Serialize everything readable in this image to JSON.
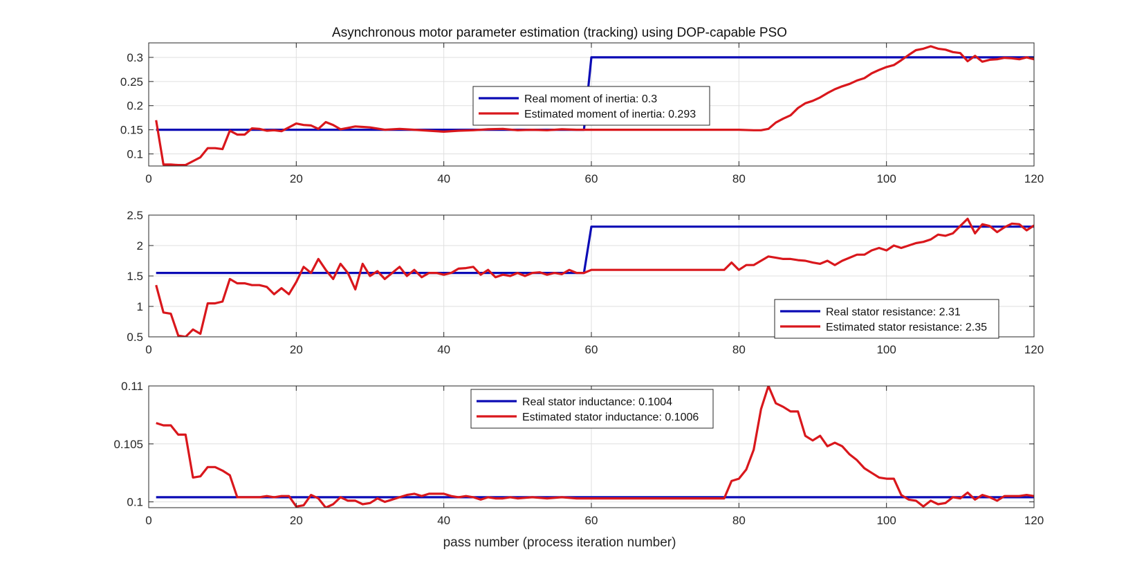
{
  "colors": {
    "real": "#0b0bb5",
    "estimated": "#d9171c",
    "grid": "#dfdfdf",
    "axis": "#262626"
  },
  "chart_data": [
    {
      "type": "line",
      "title": "Asynchronous motor parameter estimation (tracking) using DOP-capable PSO",
      "xlabel": "",
      "ylabel": "",
      "xlim": [
        0,
        120
      ],
      "ylim": [
        0.075,
        0.33
      ],
      "xticks": [
        0,
        20,
        40,
        60,
        80,
        100,
        120
      ],
      "yticks": [
        0.1,
        0.15,
        0.2,
        0.25,
        0.3
      ],
      "xtick_labels": [
        "0",
        "20",
        "40",
        "60",
        "80",
        "100",
        "120"
      ],
      "ytick_labels": [
        "0.1",
        "0.15",
        "0.2",
        "0.25",
        "0.3"
      ],
      "grid": true,
      "legend_position": "upper-center",
      "series": [
        {
          "name": "Real moment of inertia: 0.3",
          "role": "real",
          "x": [
            1,
            59,
            60,
            120
          ],
          "y": [
            0.15,
            0.15,
            0.3,
            0.3
          ]
        },
        {
          "name": "Estimated moment of inertia: 0.293",
          "role": "estimated",
          "x": [
            1,
            2,
            3,
            4,
            5,
            6,
            7,
            8,
            9,
            10,
            11,
            12,
            13,
            14,
            15,
            16,
            17,
            18,
            19,
            20,
            21,
            22,
            23,
            24,
            25,
            26,
            27,
            28,
            29,
            30,
            32,
            34,
            36,
            38,
            40,
            42,
            44,
            46,
            48,
            50,
            52,
            54,
            56,
            58,
            60,
            62,
            64,
            66,
            68,
            70,
            72,
            74,
            76,
            78,
            80,
            82,
            83,
            84,
            85,
            86,
            87,
            88,
            89,
            90,
            91,
            92,
            93,
            94,
            95,
            96,
            97,
            98,
            99,
            100,
            101,
            102,
            103,
            104,
            105,
            106,
            107,
            108,
            109,
            110,
            111,
            112,
            113,
            114,
            115,
            116,
            117,
            118,
            119,
            120
          ],
          "y": [
            0.17,
            0.078,
            0.078,
            0.077,
            0.077,
            0.085,
            0.093,
            0.112,
            0.112,
            0.11,
            0.148,
            0.14,
            0.14,
            0.153,
            0.152,
            0.148,
            0.149,
            0.147,
            0.155,
            0.163,
            0.16,
            0.159,
            0.152,
            0.166,
            0.16,
            0.151,
            0.154,
            0.157,
            0.156,
            0.155,
            0.15,
            0.152,
            0.15,
            0.148,
            0.146,
            0.148,
            0.149,
            0.151,
            0.152,
            0.149,
            0.15,
            0.149,
            0.151,
            0.15,
            0.15,
            0.15,
            0.15,
            0.15,
            0.15,
            0.15,
            0.15,
            0.15,
            0.15,
            0.15,
            0.15,
            0.149,
            0.149,
            0.152,
            0.165,
            0.173,
            0.18,
            0.195,
            0.205,
            0.21,
            0.217,
            0.226,
            0.234,
            0.24,
            0.245,
            0.252,
            0.257,
            0.267,
            0.274,
            0.28,
            0.284,
            0.294,
            0.305,
            0.315,
            0.318,
            0.323,
            0.318,
            0.316,
            0.311,
            0.309,
            0.292,
            0.303,
            0.291,
            0.295,
            0.296,
            0.299,
            0.298,
            0.296,
            0.3,
            0.296
          ]
        }
      ]
    },
    {
      "type": "line",
      "title": "",
      "xlabel": "",
      "ylabel": "",
      "xlim": [
        0,
        120
      ],
      "ylim": [
        0.5,
        2.5
      ],
      "xticks": [
        0,
        20,
        40,
        60,
        80,
        100,
        120
      ],
      "yticks": [
        0.5,
        1,
        1.5,
        2,
        2.5
      ],
      "xtick_labels": [
        "0",
        "20",
        "40",
        "60",
        "80",
        "100",
        "120"
      ],
      "ytick_labels": [
        "0.5",
        "1",
        "1.5",
        "2",
        "2.5"
      ],
      "grid": true,
      "legend_position": "lower-right",
      "series": [
        {
          "name": "Real stator resistance: 2.31",
          "role": "real",
          "x": [
            1,
            59,
            60,
            120
          ],
          "y": [
            1.55,
            1.55,
            2.31,
            2.31
          ]
        },
        {
          "name": "Estimated stator resistance: 2.35",
          "role": "estimated",
          "x": [
            1,
            2,
            3,
            4,
            5,
            6,
            7,
            8,
            9,
            10,
            11,
            12,
            13,
            14,
            15,
            16,
            17,
            18,
            19,
            20,
            21,
            22,
            23,
            24,
            25,
            26,
            27,
            28,
            29,
            30,
            31,
            32,
            33,
            34,
            35,
            36,
            37,
            38,
            39,
            40,
            41,
            42,
            43,
            44,
            45,
            46,
            47,
            48,
            49,
            50,
            51,
            52,
            53,
            54,
            55,
            56,
            57,
            58,
            59,
            60,
            62,
            64,
            66,
            68,
            70,
            72,
            74,
            76,
            78,
            79,
            80,
            81,
            82,
            83,
            84,
            85,
            86,
            87,
            88,
            89,
            90,
            91,
            92,
            93,
            94,
            95,
            96,
            97,
            98,
            99,
            100,
            101,
            102,
            103,
            104,
            105,
            106,
            107,
            108,
            109,
            110,
            111,
            112,
            113,
            114,
            115,
            116,
            117,
            118,
            119,
            120
          ],
          "y": [
            1.35,
            0.9,
            0.88,
            0.52,
            0.5,
            0.62,
            0.55,
            1.05,
            1.05,
            1.08,
            1.45,
            1.38,
            1.38,
            1.35,
            1.35,
            1.32,
            1.2,
            1.3,
            1.2,
            1.4,
            1.65,
            1.55,
            1.78,
            1.6,
            1.45,
            1.7,
            1.55,
            1.28,
            1.7,
            1.5,
            1.58,
            1.45,
            1.55,
            1.65,
            1.5,
            1.6,
            1.48,
            1.55,
            1.55,
            1.52,
            1.55,
            1.62,
            1.63,
            1.65,
            1.52,
            1.6,
            1.48,
            1.52,
            1.5,
            1.55,
            1.5,
            1.55,
            1.56,
            1.52,
            1.55,
            1.53,
            1.6,
            1.55,
            1.55,
            1.6,
            1.6,
            1.6,
            1.6,
            1.6,
            1.6,
            1.6,
            1.6,
            1.6,
            1.6,
            1.72,
            1.6,
            1.68,
            1.68,
            1.75,
            1.82,
            1.8,
            1.78,
            1.78,
            1.76,
            1.75,
            1.72,
            1.7,
            1.75,
            1.68,
            1.75,
            1.8,
            1.85,
            1.85,
            1.92,
            1.96,
            1.92,
            2.0,
            1.96,
            2.0,
            2.04,
            2.06,
            2.1,
            2.18,
            2.16,
            2.2,
            2.32,
            2.44,
            2.2,
            2.35,
            2.32,
            2.22,
            2.3,
            2.36,
            2.35,
            2.25,
            2.33
          ]
        }
      ]
    },
    {
      "type": "line",
      "title": "",
      "xlabel": "pass number (process iteration number)",
      "ylabel": "",
      "xlim": [
        0,
        120
      ],
      "ylim": [
        0.0995,
        0.11
      ],
      "xticks": [
        0,
        20,
        40,
        60,
        80,
        100,
        120
      ],
      "yticks": [
        0.1,
        0.105,
        0.11
      ],
      "xtick_labels": [
        "0",
        "20",
        "40",
        "60",
        "80",
        "100",
        "120"
      ],
      "ytick_labels": [
        "0.1",
        "0.105",
        "0.11"
      ],
      "grid": true,
      "legend_position": "upper-center",
      "series": [
        {
          "name": "Real stator inductance: 0.1004",
          "role": "real",
          "x": [
            1,
            120
          ],
          "y": [
            0.1004,
            0.1004
          ]
        },
        {
          "name": "Estimated stator inductance: 0.1006",
          "role": "estimated",
          "x": [
            1,
            2,
            3,
            4,
            5,
            6,
            7,
            8,
            9,
            10,
            11,
            12,
            13,
            14,
            15,
            16,
            17,
            18,
            19,
            20,
            21,
            22,
            23,
            24,
            25,
            26,
            27,
            28,
            29,
            30,
            31,
            32,
            33,
            34,
            35,
            36,
            37,
            38,
            39,
            40,
            41,
            42,
            43,
            44,
            45,
            46,
            47,
            48,
            49,
            50,
            52,
            54,
            56,
            58,
            60,
            62,
            64,
            66,
            68,
            70,
            72,
            74,
            76,
            78,
            79,
            80,
            81,
            82,
            83,
            84,
            85,
            86,
            87,
            88,
            89,
            90,
            91,
            92,
            93,
            94,
            95,
            96,
            97,
            98,
            99,
            100,
            101,
            102,
            103,
            104,
            105,
            106,
            107,
            108,
            109,
            110,
            111,
            112,
            113,
            114,
            115,
            116,
            117,
            118,
            119,
            120
          ],
          "y": [
            0.1068,
            0.1066,
            0.1066,
            0.1058,
            0.1058,
            0.1021,
            0.1022,
            0.103,
            0.103,
            0.1027,
            0.1023,
            0.1004,
            0.1004,
            0.1004,
            0.1004,
            0.1005,
            0.1004,
            0.1005,
            0.1005,
            0.0996,
            0.0997,
            0.1006,
            0.1003,
            0.0995,
            0.0998,
            0.1004,
            0.1001,
            0.1001,
            0.0998,
            0.0999,
            0.1003,
            0.1,
            0.1002,
            0.1004,
            0.1006,
            0.1007,
            0.1005,
            0.1007,
            0.1007,
            0.1007,
            0.1005,
            0.1004,
            0.1005,
            0.1004,
            0.1002,
            0.1004,
            0.1003,
            0.1003,
            0.1004,
            0.1003,
            0.1004,
            0.1003,
            0.1004,
            0.1003,
            0.1003,
            0.1003,
            0.1003,
            0.1003,
            0.1003,
            0.1003,
            0.1003,
            0.1003,
            0.1003,
            0.1003,
            0.1018,
            0.102,
            0.1028,
            0.1045,
            0.108,
            0.11,
            0.1085,
            0.1082,
            0.1078,
            0.1078,
            0.1057,
            0.1053,
            0.1057,
            0.1048,
            0.1051,
            0.1048,
            0.1041,
            0.1036,
            0.1029,
            0.1025,
            0.1021,
            0.102,
            0.102,
            0.1006,
            0.1002,
            0.1001,
            0.0996,
            0.1001,
            0.0998,
            0.0999,
            0.1004,
            0.1003,
            0.1008,
            0.1002,
            0.1006,
            0.1004,
            0.1001,
            0.1005,
            0.1005,
            0.1005,
            0.1006,
            0.1005
          ]
        }
      ]
    }
  ]
}
